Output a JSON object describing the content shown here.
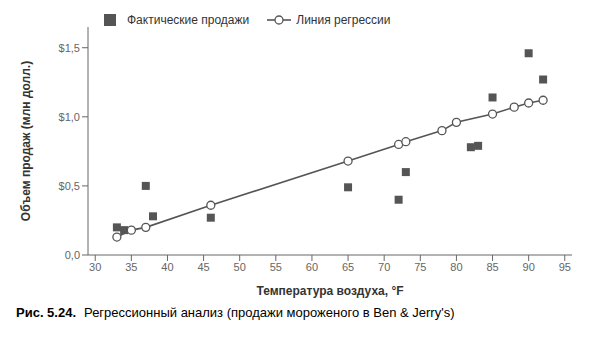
{
  "chart_data": {
    "type": "scatter",
    "title": "Рис. 5.24.",
    "subtitle": "Регрессионный анализ (продажи мороженого в Ben & Jerry's)",
    "xlabel": "Температура воздуха, °F",
    "ylabel": "Объем продаж (млн долл.)",
    "series": [
      {
        "name": "Фактические продажи",
        "type": "scatter",
        "marker": "square",
        "color": "#555555",
        "x": [
          33,
          34,
          37,
          38,
          46,
          65,
          72,
          73,
          82,
          83,
          85,
          90,
          92
        ],
        "values": [
          0.2,
          0.18,
          0.5,
          0.28,
          0.27,
          0.49,
          0.4,
          0.6,
          0.78,
          0.79,
          1.14,
          1.46,
          1.27
        ]
      },
      {
        "name": "Линия регрессии",
        "type": "line",
        "marker": "open_circle",
        "line_style": "solid",
        "color": "#555555",
        "x": [
          33,
          35,
          37,
          46,
          65,
          72,
          73,
          78,
          80,
          85,
          88,
          90,
          92
        ],
        "values": [
          0.13,
          0.18,
          0.2,
          0.36,
          0.68,
          0.8,
          0.82,
          0.9,
          0.96,
          1.02,
          1.07,
          1.1,
          1.12
        ]
      }
    ],
    "xlim": [
      29,
      96
    ],
    "ylim": [
      0.0,
      1.65
    ],
    "xticks": [
      30,
      35,
      40,
      45,
      50,
      55,
      60,
      65,
      70,
      75,
      80,
      85,
      90,
      95
    ],
    "yticks": [
      {
        "value": 0.0,
        "label": "0,0"
      },
      {
        "value": 0.5,
        "label": "$0,5"
      },
      {
        "value": 1.0,
        "label": "$1,0"
      },
      {
        "value": 1.5,
        "label": "$1,5"
      }
    ],
    "grid": false,
    "legend": "upper left"
  }
}
